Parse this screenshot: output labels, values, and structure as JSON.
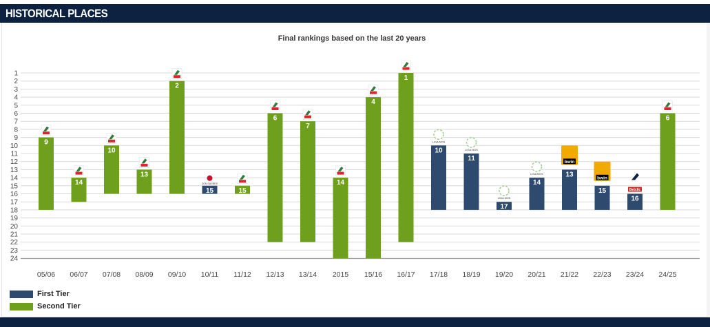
{
  "header": {
    "title": "HISTORICAL PLACES"
  },
  "chart_data": {
    "type": "bar",
    "title": "Final rankings based on the last 20 years",
    "y_axis": {
      "min": 1,
      "max": 24,
      "ticks": [
        1,
        2,
        3,
        4,
        5,
        6,
        7,
        8,
        9,
        10,
        11,
        12,
        13,
        14,
        15,
        16,
        17,
        18,
        19,
        20,
        21,
        22,
        23,
        24
      ],
      "inverted": true
    },
    "categories": [
      "05/06",
      "06/07",
      "07/08",
      "08/09",
      "09/10",
      "10/11",
      "11/12",
      "12/13",
      "13/14",
      "2015",
      "15/16",
      "16/17",
      "17/18",
      "18/19",
      "19/20",
      "20/21",
      "21/22",
      "22/23",
      "23/24",
      "24/25"
    ],
    "bars": [
      {
        "season": "05/06",
        "rank": 9,
        "tier": "Second Tier",
        "base": 18
      },
      {
        "season": "06/07",
        "rank": 14,
        "tier": "Second Tier",
        "base": 17
      },
      {
        "season": "07/08",
        "rank": 10,
        "tier": "Second Tier",
        "base": 16
      },
      {
        "season": "08/09",
        "rank": 13,
        "tier": "Second Tier",
        "base": 16
      },
      {
        "season": "09/10",
        "rank": 2,
        "tier": "Second Tier",
        "base": 16
      },
      {
        "season": "10/11",
        "rank": 15,
        "tier": "First Tier",
        "base": 16
      },
      {
        "season": "11/12",
        "rank": 15,
        "tier": "Second Tier",
        "base": 16
      },
      {
        "season": "12/13",
        "rank": 6,
        "tier": "Second Tier",
        "base": 22
      },
      {
        "season": "13/14",
        "rank": 7,
        "tier": "Second Tier",
        "base": 22
      },
      {
        "season": "2015",
        "rank": 14,
        "tier": "Second Tier",
        "base": 24
      },
      {
        "season": "15/16",
        "rank": 4,
        "tier": "Second Tier",
        "base": 24
      },
      {
        "season": "16/17",
        "rank": 1,
        "tier": "Second Tier",
        "base": 22
      },
      {
        "season": "17/18",
        "rank": 10,
        "tier": "First Tier",
        "base": 18
      },
      {
        "season": "18/19",
        "rank": 11,
        "tier": "First Tier",
        "base": 18
      },
      {
        "season": "19/20",
        "rank": 17,
        "tier": "First Tier",
        "base": 18
      },
      {
        "season": "20/21",
        "rank": 14,
        "tier": "First Tier",
        "base": 18
      },
      {
        "season": "21/22",
        "rank": 13,
        "tier": "First Tier",
        "base": 18
      },
      {
        "season": "22/23",
        "rank": 15,
        "tier": "First Tier",
        "base": 18
      },
      {
        "season": "23/24",
        "rank": 16,
        "tier": "First Tier",
        "base": 18
      },
      {
        "season": "24/25",
        "rank": 6,
        "tier": "Second Tier",
        "base": 18
      }
    ],
    "legend": [
      {
        "label": "First Tier",
        "color": "#2e4a6e"
      },
      {
        "label": "Second Tier",
        "color": "#6ea01e"
      }
    ],
    "grid": true,
    "legend_position": "bottom-left"
  },
  "colors": {
    "header_bg": "#0d2240",
    "first_tier": "#2e4a6e",
    "second_tier": "#6ea01e",
    "grid": "#d8d8d8"
  },
  "icons": {
    "second_tier_logo": "liga-portugal-2-logo-icon",
    "first_tier_logo_old": "liga-nos-logo-icon",
    "first_tier_logo_bwin": "liga-portugal-bwin-logo-icon",
    "first_tier_logo_betclic": "liga-portugal-betclic-logo-icon",
    "first_tier_logo_zon": "zon-sagres-logo-icon"
  },
  "logo_texts": {
    "bwin": "bwin",
    "betclic": "Betclic",
    "liga_nos": "LIGA NOS",
    "zon": "ZON SAGRES"
  }
}
